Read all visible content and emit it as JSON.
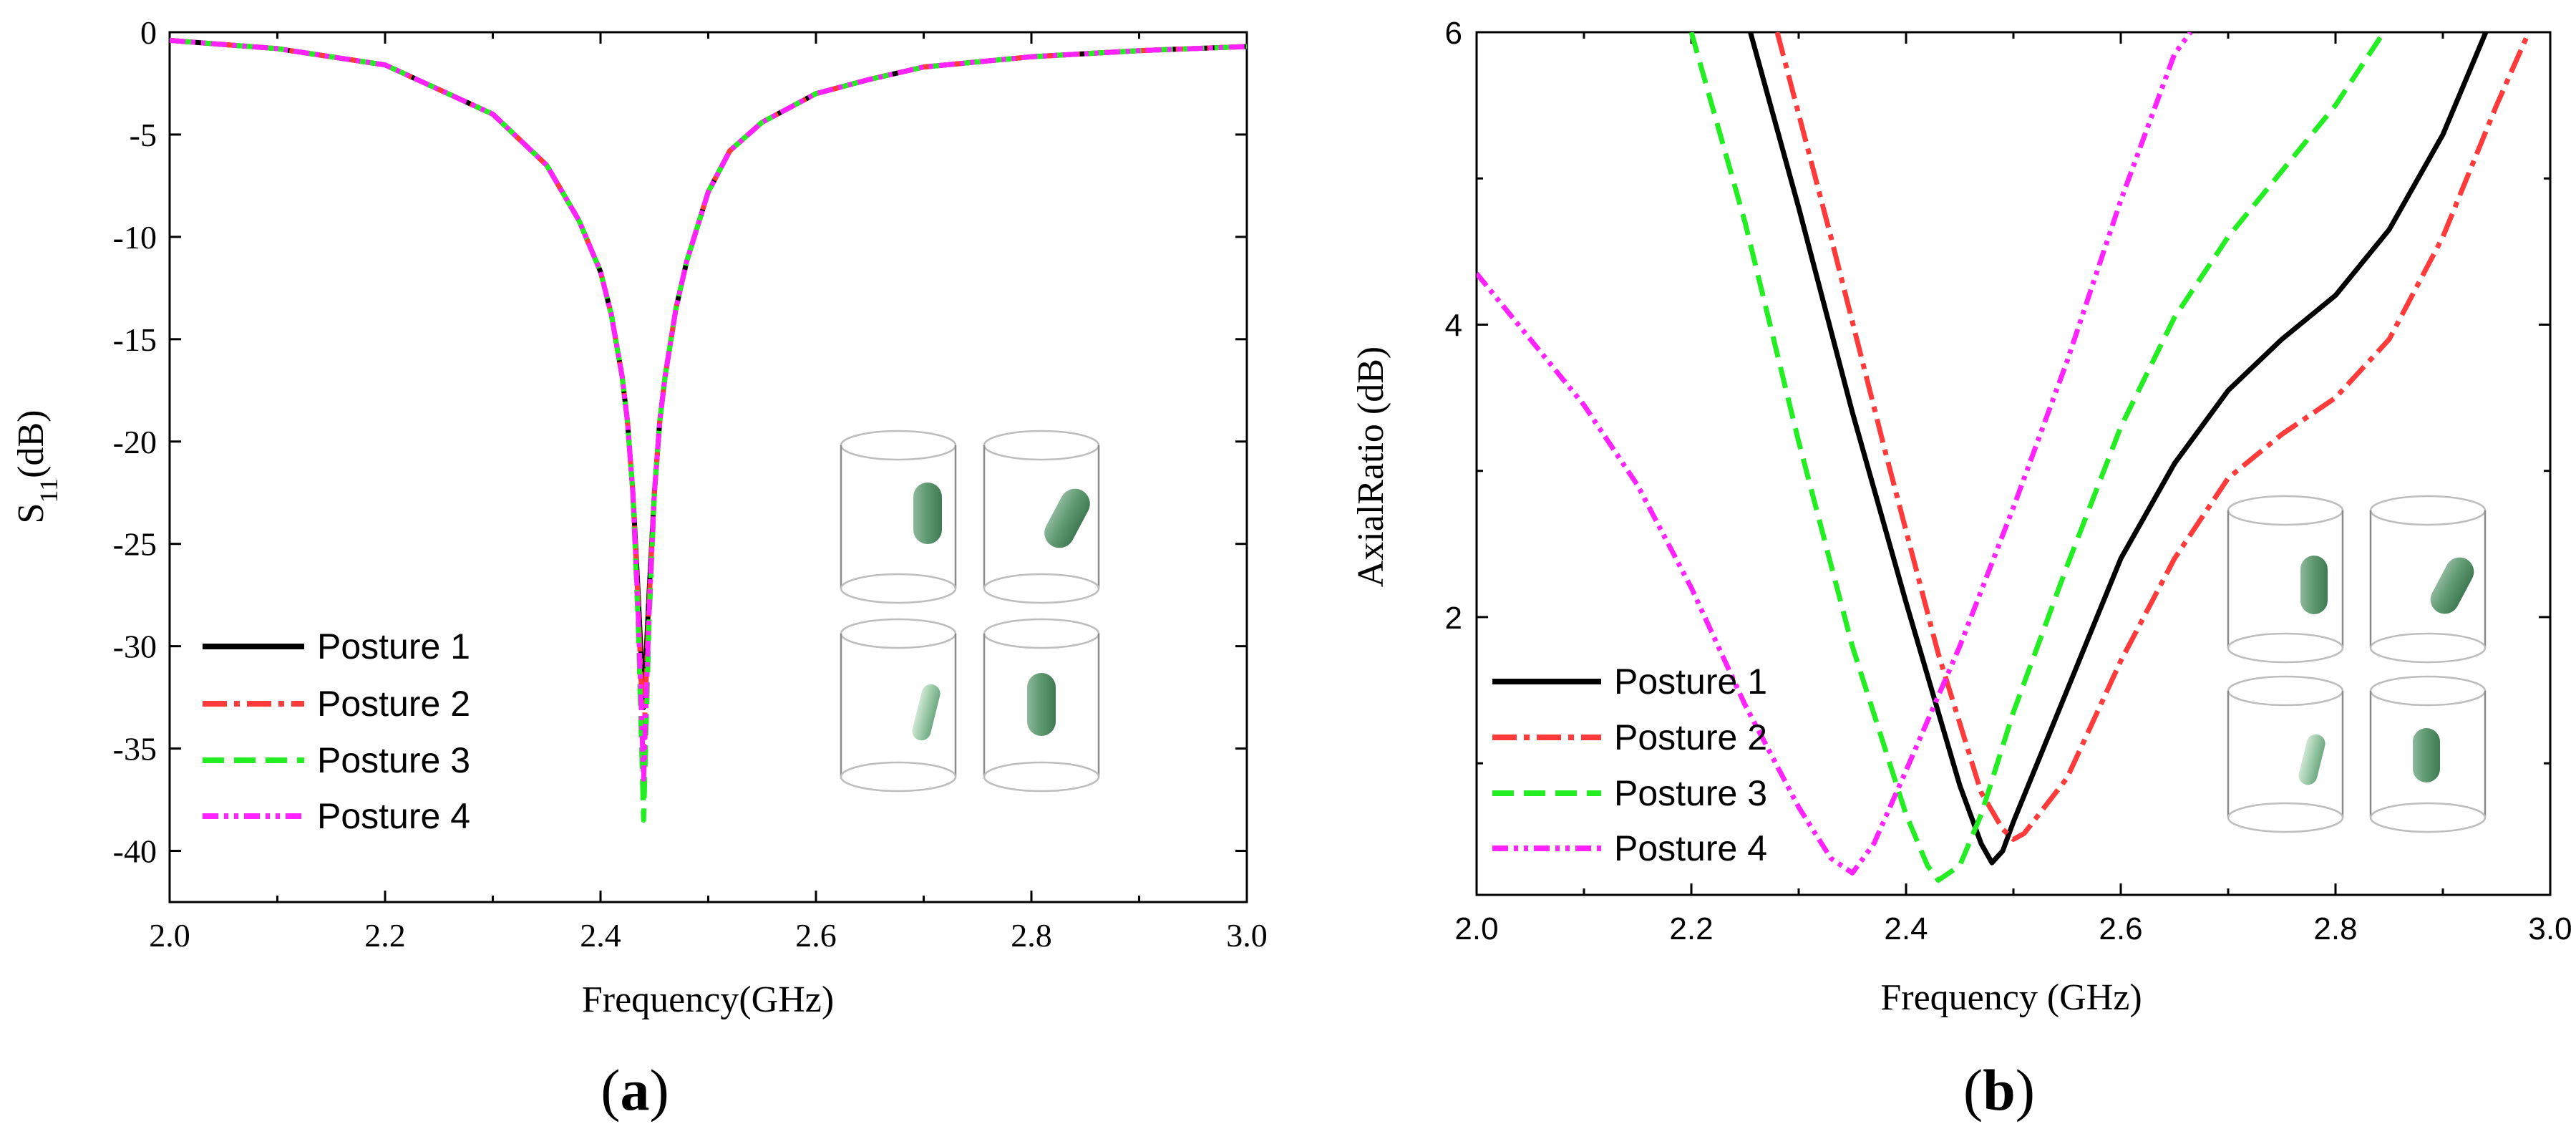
{
  "chart_data": [
    {
      "id": "a",
      "type": "line",
      "panel_label_open": "(",
      "panel_label_letter": "a",
      "panel_label_close": ")",
      "ylabel_main": "S",
      "ylabel_sub": "11",
      "ylabel_rest": "(dB)",
      "xlabel": "Frequency(GHz)",
      "xlim": [
        2.0,
        3.0
      ],
      "ylim": [
        -42.5,
        0
      ],
      "xticks": [
        2.0,
        2.2,
        2.4,
        2.6,
        2.8,
        3.0
      ],
      "xtick_labels": [
        "2.0",
        "2.2",
        "2.4",
        "2.6",
        "2.8",
        "3.0"
      ],
      "yticks": [
        0,
        -5,
        -10,
        -15,
        -20,
        -25,
        -30,
        -35,
        -40
      ],
      "ytick_labels": [
        "0",
        "-5",
        "-10",
        "-15",
        "-20",
        "-25",
        "-30",
        "-35",
        "-40"
      ],
      "legend_position": "lower-left",
      "inset": "four cylinder posture illustrations",
      "series": [
        {
          "name": "Posture 1",
          "color": "#000000",
          "dash": "solid",
          "x": [
            2.0,
            2.1,
            2.2,
            2.3,
            2.35,
            2.38,
            2.4,
            2.41,
            2.42,
            2.425,
            2.43,
            2.435,
            2.44,
            2.445,
            2.45,
            2.455,
            2.46,
            2.47,
            2.48,
            2.5,
            2.52,
            2.55,
            2.6,
            2.65,
            2.7,
            2.8,
            2.9,
            3.0
          ],
          "y": [
            -0.4,
            -0.8,
            -1.6,
            -4.0,
            -6.5,
            -9.2,
            -11.7,
            -13.8,
            -16.8,
            -19.0,
            -22.5,
            -27.5,
            -33.0,
            -27.5,
            -22.5,
            -19.0,
            -16.8,
            -13.5,
            -11.2,
            -7.8,
            -5.8,
            -4.4,
            -3.0,
            -2.3,
            -1.7,
            -1.2,
            -0.9,
            -0.7
          ]
        },
        {
          "name": "Posture 2",
          "color": "#ff3a3a",
          "dash": "dashdot",
          "x": [
            2.0,
            2.1,
            2.2,
            2.3,
            2.35,
            2.38,
            2.4,
            2.41,
            2.42,
            2.425,
            2.43,
            2.435,
            2.44,
            2.445,
            2.45,
            2.455,
            2.46,
            2.47,
            2.48,
            2.5,
            2.52,
            2.55,
            2.6,
            2.65,
            2.7,
            2.8,
            2.9,
            3.0
          ],
          "y": [
            -0.4,
            -0.8,
            -1.6,
            -4.0,
            -6.5,
            -9.2,
            -11.7,
            -13.8,
            -16.8,
            -19.0,
            -22.5,
            -28.0,
            -35.0,
            -28.0,
            -22.5,
            -19.0,
            -16.8,
            -13.5,
            -11.2,
            -7.8,
            -5.8,
            -4.4,
            -3.0,
            -2.3,
            -1.7,
            -1.2,
            -0.9,
            -0.7
          ]
        },
        {
          "name": "Posture 3",
          "color": "#22ee22",
          "dash": "dash",
          "x": [
            2.0,
            2.1,
            2.2,
            2.3,
            2.35,
            2.38,
            2.4,
            2.41,
            2.42,
            2.425,
            2.43,
            2.435,
            2.44,
            2.445,
            2.45,
            2.455,
            2.46,
            2.47,
            2.48,
            2.5,
            2.52,
            2.55,
            2.6,
            2.65,
            2.7,
            2.8,
            2.9,
            3.0
          ],
          "y": [
            -0.4,
            -0.8,
            -1.6,
            -4.0,
            -6.5,
            -9.2,
            -11.7,
            -13.8,
            -16.8,
            -19.0,
            -22.5,
            -29.0,
            -38.5,
            -29.0,
            -22.5,
            -19.0,
            -16.8,
            -13.5,
            -11.2,
            -7.8,
            -5.8,
            -4.4,
            -3.0,
            -2.3,
            -1.7,
            -1.2,
            -0.9,
            -0.7
          ]
        },
        {
          "name": "Posture 4",
          "color": "#ff22ff",
          "dash": "dashdotdot",
          "x": [
            2.0,
            2.1,
            2.2,
            2.3,
            2.35,
            2.38,
            2.4,
            2.41,
            2.42,
            2.425,
            2.43,
            2.435,
            2.44,
            2.445,
            2.45,
            2.455,
            2.46,
            2.47,
            2.48,
            2.5,
            2.52,
            2.55,
            2.6,
            2.65,
            2.7,
            2.8,
            2.9,
            3.0
          ],
          "y": [
            -0.4,
            -0.8,
            -1.6,
            -4.0,
            -6.5,
            -9.2,
            -11.7,
            -13.8,
            -16.8,
            -19.0,
            -22.5,
            -28.5,
            -36.5,
            -28.5,
            -22.5,
            -19.0,
            -16.8,
            -13.5,
            -11.2,
            -7.8,
            -5.8,
            -4.4,
            -3.0,
            -2.3,
            -1.7,
            -1.2,
            -0.9,
            -0.7
          ]
        }
      ]
    },
    {
      "id": "b",
      "type": "line",
      "panel_label_open": "(",
      "panel_label_letter": "b",
      "panel_label_close": ")",
      "ylabel": "AxialRatio (dB)",
      "xlabel": "Frequency (GHz)",
      "xlim": [
        2.0,
        3.0
      ],
      "ylim": [
        0.1,
        6.0
      ],
      "xticks": [
        2.0,
        2.2,
        2.4,
        2.6,
        2.8,
        3.0
      ],
      "xtick_labels": [
        "2.0",
        "2.2",
        "2.4",
        "2.6",
        "2.8",
        "3.0"
      ],
      "yticks": [
        2,
        4,
        6
      ],
      "ytick_labels": [
        "2",
        "4",
        "6"
      ],
      "legend_position": "lower-left",
      "inset": "four cylinder posture illustrations",
      "series": [
        {
          "name": "Posture 1",
          "color": "#000000",
          "dash": "solid",
          "x": [
            2.255,
            2.3,
            2.35,
            2.4,
            2.45,
            2.47,
            2.48,
            2.49,
            2.5,
            2.55,
            2.6,
            2.65,
            2.7,
            2.75,
            2.8,
            2.85,
            2.9,
            2.94
          ],
          "y": [
            6.0,
            4.8,
            3.4,
            2.1,
            0.85,
            0.45,
            0.32,
            0.4,
            0.6,
            1.5,
            2.4,
            3.05,
            3.55,
            3.9,
            4.2,
            4.65,
            5.3,
            6.0
          ]
        },
        {
          "name": "Posture 2",
          "color": "#ff3a3a",
          "dash": "dashdot",
          "x": [
            2.28,
            2.33,
            2.38,
            2.43,
            2.47,
            2.49,
            2.5,
            2.51,
            2.55,
            2.6,
            2.65,
            2.7,
            2.75,
            2.8,
            2.85,
            2.9,
            2.95,
            2.98
          ],
          "y": [
            6.0,
            4.6,
            3.15,
            1.75,
            0.8,
            0.55,
            0.48,
            0.52,
            0.9,
            1.7,
            2.4,
            2.95,
            3.25,
            3.5,
            3.9,
            4.6,
            5.5,
            6.0
          ]
        },
        {
          "name": "Posture 3",
          "color": "#22ee22",
          "dash": "dash",
          "x": [
            2.2,
            2.25,
            2.3,
            2.35,
            2.4,
            2.42,
            2.43,
            2.45,
            2.47,
            2.5,
            2.55,
            2.6,
            2.65,
            2.7,
            2.75,
            2.8,
            2.845
          ],
          "y": [
            6.0,
            4.7,
            3.2,
            1.8,
            0.65,
            0.3,
            0.2,
            0.3,
            0.65,
            1.35,
            2.35,
            3.3,
            4.05,
            4.6,
            5.05,
            5.5,
            6.0
          ]
        },
        {
          "name": "Posture 4",
          "color": "#ff22ff",
          "dash": "dashdotdot",
          "x": [
            2.0,
            2.05,
            2.1,
            2.15,
            2.2,
            2.25,
            2.3,
            2.33,
            2.35,
            2.37,
            2.4,
            2.45,
            2.5,
            2.55,
            2.6,
            2.65,
            2.665
          ],
          "y": [
            4.35,
            3.9,
            3.45,
            2.9,
            2.2,
            1.4,
            0.7,
            0.35,
            0.25,
            0.45,
            0.95,
            1.8,
            2.75,
            3.75,
            4.85,
            5.85,
            6.0
          ]
        }
      ]
    }
  ]
}
